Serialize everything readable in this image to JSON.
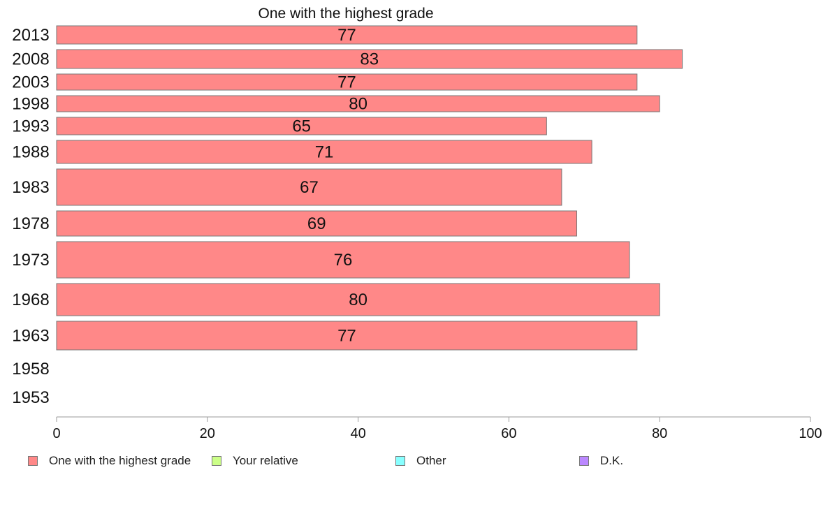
{
  "chart_data": {
    "type": "bar",
    "orientation": "horizontal",
    "title": "One with the highest grade",
    "categories": [
      "2013",
      "2008",
      "2003",
      "1998",
      "1993",
      "1988",
      "1983",
      "1978",
      "1973",
      "1968",
      "1963",
      "1958",
      "1953"
    ],
    "series": [
      {
        "name": "One with the highest grade",
        "color": "#ff8888",
        "values": [
          77,
          83,
          77,
          80,
          65,
          71,
          67,
          69,
          76,
          80,
          77,
          null,
          null
        ]
      }
    ],
    "data_labels": [
      "77",
      "83",
      "77",
      "80",
      "65",
      "71",
      "67",
      "69",
      "76",
      "80",
      "77",
      "",
      ""
    ],
    "xlim": [
      0,
      100
    ],
    "xticks": [
      0,
      20,
      40,
      60,
      80,
      100
    ],
    "xlabel": "",
    "ylabel": "",
    "grid": false,
    "legend_position": "bottom"
  },
  "legend": [
    {
      "label": "One with the highest grade",
      "color": "#ff8888"
    },
    {
      "label": "Your relative",
      "color": "#ccff88"
    },
    {
      "label": "Other",
      "color": "#88ffff"
    },
    {
      "label": "D.K.",
      "color": "#bb88ff"
    }
  ]
}
